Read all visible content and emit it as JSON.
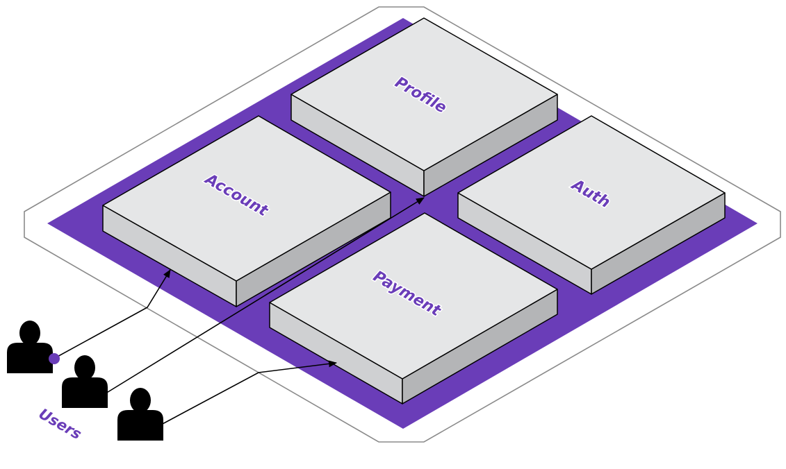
{
  "diagram": {
    "modules": [
      {
        "id": "account",
        "label": "Account"
      },
      {
        "id": "profile",
        "label": "Profile"
      },
      {
        "id": "auth",
        "label": "Auth"
      },
      {
        "id": "payment",
        "label": "Payment"
      }
    ],
    "actors": {
      "label": "Users"
    },
    "connections": [
      {
        "from": "Users",
        "to": "Account"
      },
      {
        "from": "Users",
        "to": "Profile"
      },
      {
        "from": "Users",
        "to": "Payment"
      }
    ]
  },
  "colors": {
    "platform": "#6a3db8",
    "block_top": "#e5e6e7",
    "block_left": "#cfd0d2",
    "block_right": "#b4b5b7",
    "accent_dot": "#6a3db8",
    "user": "#000000"
  }
}
